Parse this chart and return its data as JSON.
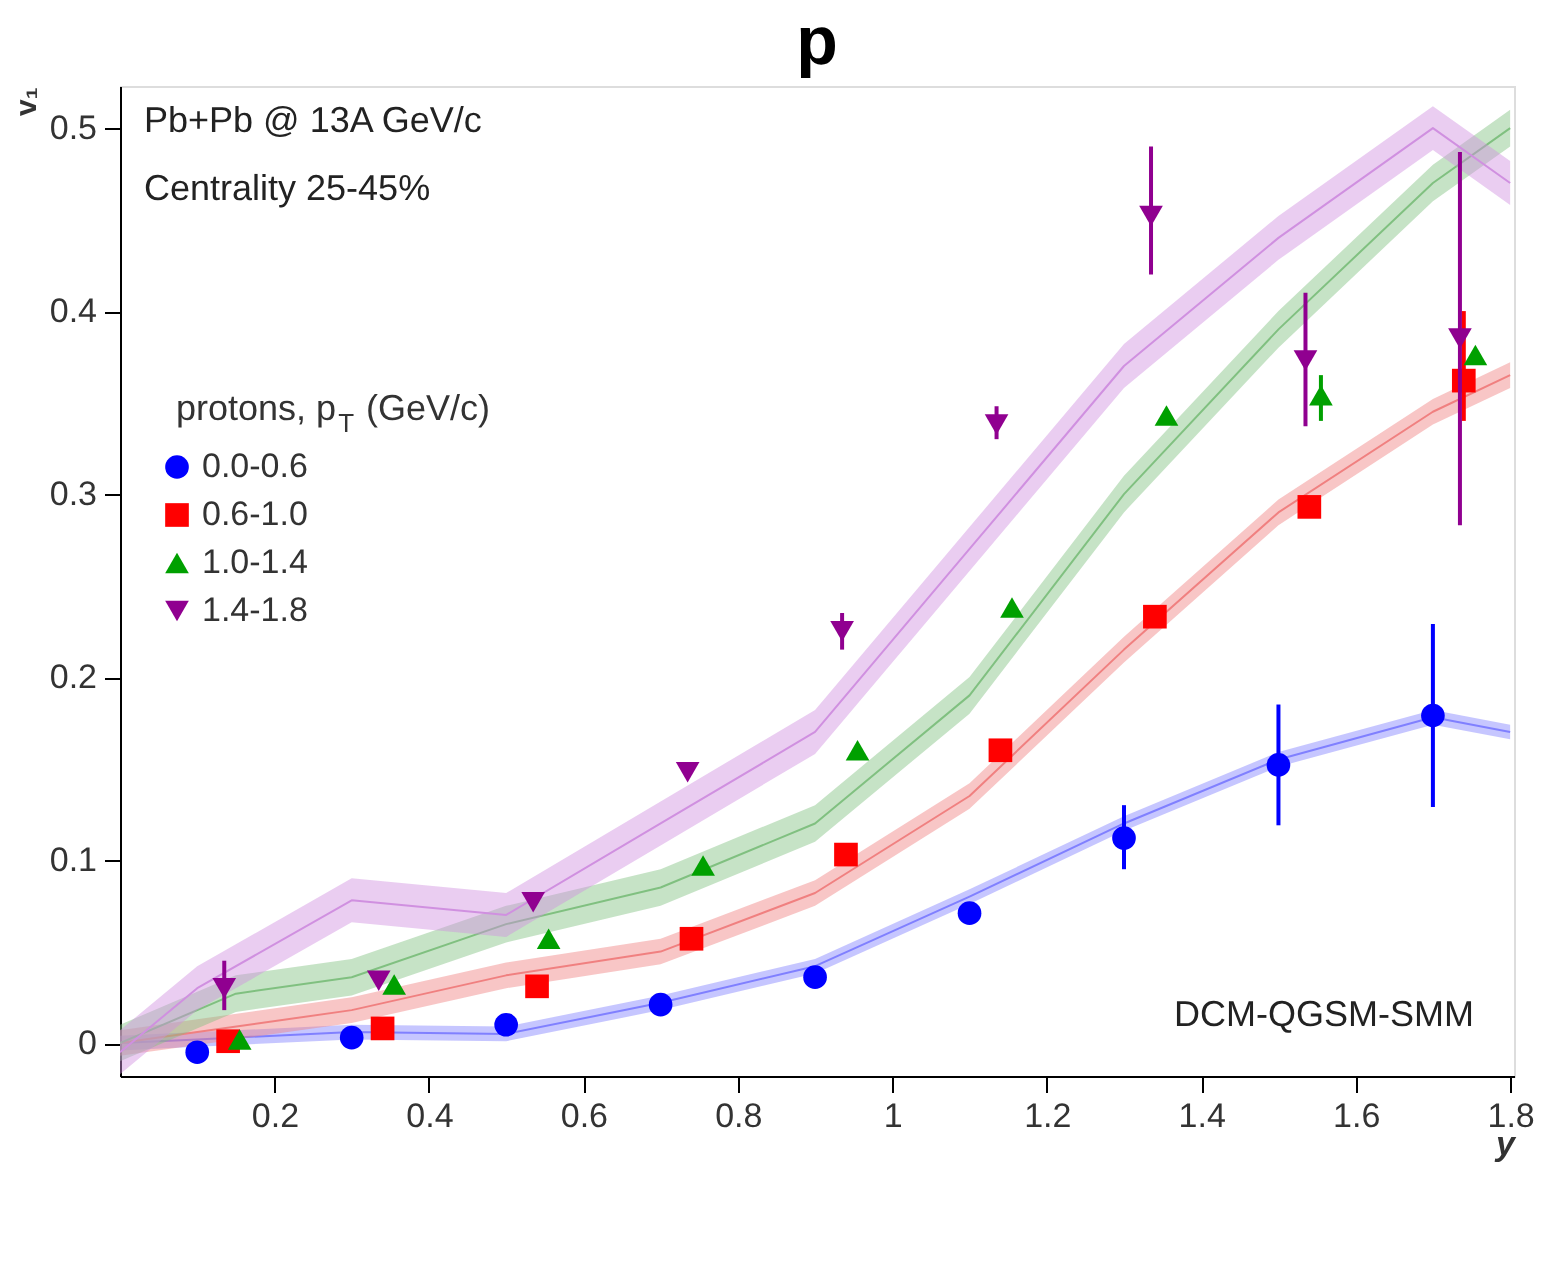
{
  "chart_data": {
    "type": "scatter",
    "title": "p",
    "xlabel": "y",
    "ylabel": "v₁",
    "legend_title": "protons, p$_{T}$ (GeV/c)",
    "annotations": [
      "Pb+Pb @ 13A GeV/c",
      "Centrality 25-45%",
      "DCM-QGSM-SMM"
    ],
    "xlim": [
      0,
      1.805
    ],
    "ylim": [
      -0.018,
      0.523
    ],
    "xticks": [
      0.2,
      0.4,
      0.6,
      0.8,
      1,
      1.2,
      1.4,
      1.6,
      1.8
    ],
    "yticks": [
      0,
      0.1,
      0.2,
      0.3,
      0.4,
      0.5
    ],
    "grid": false,
    "legend": "top left",
    "series": [
      {
        "type": "line",
        "color": "#8080ff",
        "x": [
          0,
          0.1,
          0.3,
          0.5,
          0.7,
          0.9,
          1.1,
          1.3,
          1.5,
          1.7,
          1.8
        ],
        "values": [
          0,
          0.002,
          0.006,
          0.005,
          0.022,
          0.042,
          0.08,
          0.12,
          0.155,
          0.178,
          0.17
        ],
        "lower": [
          -0.004,
          -0.002,
          0.002,
          0.001,
          0.018,
          0.038,
          0.076,
          0.116,
          0.151,
          0.174,
          0.166
        ],
        "upper": [
          0.004,
          0.006,
          0.01,
          0.009,
          0.026,
          0.046,
          0.084,
          0.124,
          0.159,
          0.182,
          0.174
        ]
      },
      {
        "type": "line",
        "color": "#f08080",
        "x": [
          0,
          0.1,
          0.3,
          0.5,
          0.7,
          0.9,
          1.1,
          1.3,
          1.5,
          1.7,
          1.8
        ],
        "values": [
          0,
          0.006,
          0.018,
          0.037,
          0.05,
          0.082,
          0.135,
          0.215,
          0.29,
          0.345,
          0.365
        ],
        "lower": [
          -0.007,
          -0.001,
          0.011,
          0.03,
          0.043,
          0.075,
          0.128,
          0.208,
          0.283,
          0.338,
          0.358
        ],
        "upper": [
          0.007,
          0.013,
          0.025,
          0.044,
          0.057,
          0.089,
          0.142,
          0.222,
          0.297,
          0.352,
          0.372
        ]
      },
      {
        "type": "line",
        "color": "#80c080",
        "x": [
          0,
          0.15,
          0.3,
          0.5,
          0.7,
          0.9,
          1.1,
          1.3,
          1.5,
          1.7,
          1.8
        ],
        "values": [
          0,
          0.027,
          0.036,
          0.065,
          0.085,
          0.12,
          0.19,
          0.3,
          0.39,
          0.47,
          0.5
        ],
        "lower": [
          -0.01,
          0.017,
          0.026,
          0.055,
          0.075,
          0.11,
          0.18,
          0.29,
          0.38,
          0.46,
          0.49
        ],
        "upper": [
          0.01,
          0.037,
          0.046,
          0.075,
          0.095,
          0.13,
          0.2,
          0.31,
          0.4,
          0.48,
          0.51
        ]
      },
      {
        "type": "line",
        "color": "#d090e0",
        "x": [
          0,
          0.1,
          0.3,
          0.5,
          0.7,
          0.9,
          1.1,
          1.3,
          1.5,
          1.7,
          1.8
        ],
        "values": [
          -0.005,
          0.03,
          0.078,
          0.07,
          0.12,
          0.17,
          0.27,
          0.37,
          0.44,
          0.5,
          0.47
        ],
        "lower": [
          -0.017,
          0.018,
          0.066,
          0.058,
          0.108,
          0.158,
          0.258,
          0.358,
          0.428,
          0.488,
          0.458
        ],
        "upper": [
          0.007,
          0.042,
          0.09,
          0.082,
          0.132,
          0.182,
          0.282,
          0.382,
          0.452,
          0.512,
          0.482
        ]
      },
      {
        "name": "0.0-0.6",
        "color": "#0000ff",
        "marker": "circle",
        "x": [
          0.1,
          0.3,
          0.5,
          0.7,
          0.9,
          1.1,
          1.3,
          1.5,
          1.7
        ],
        "values": [
          -0.005,
          0.003,
          0.01,
          0.021,
          0.036,
          0.071,
          0.112,
          0.152,
          0.179
        ],
        "errors": [
          null,
          null,
          null,
          null,
          null,
          null,
          [
            0.095,
            0.13
          ],
          [
            0.119,
            0.185
          ],
          [
            0.129,
            0.229
          ]
        ]
      },
      {
        "name": "0.6-1.0",
        "color": "#ff0000",
        "marker": "square",
        "x": [
          0.14,
          0.34,
          0.54,
          0.74,
          0.94,
          1.14,
          1.34,
          1.54,
          1.74
        ],
        "values": [
          0.001,
          0.008,
          0.031,
          0.057,
          0.103,
          0.16,
          0.233,
          0.293,
          0.362
        ],
        "errors": [
          null,
          null,
          null,
          null,
          null,
          null,
          null,
          null,
          [
            0.34,
            0.4
          ]
        ]
      },
      {
        "name": "1.0-1.4",
        "color": "#00a000",
        "marker": "triangle",
        "x": [
          0.155,
          0.355,
          0.555,
          0.755,
          0.955,
          1.155,
          1.355,
          1.555,
          1.755
        ],
        "values": [
          0.002,
          0.032,
          0.057,
          0.097,
          0.16,
          0.238,
          0.343,
          0.354,
          0.376
        ],
        "errors": [
          null,
          null,
          null,
          null,
          null,
          null,
          null,
          [
            0.34,
            0.365
          ],
          null
        ]
      },
      {
        "name": "1.4-1.8",
        "color": "#900090",
        "marker": "triangle-down",
        "x": [
          0.135,
          0.335,
          0.535,
          0.735,
          0.935,
          1.135,
          1.335,
          1.535,
          1.735
        ],
        "values": [
          0.03,
          0.034,
          0.077,
          0.148,
          0.225,
          0.338,
          0.452,
          0.373,
          0.385
        ],
        "errors": [
          [
            0.018,
            0.045
          ],
          null,
          null,
          null,
          [
            0.215,
            0.235
          ],
          [
            0.33,
            0.348
          ],
          [
            0.42,
            0.49
          ],
          [
            0.337,
            0.41
          ],
          [
            0.283,
            0.487
          ]
        ]
      }
    ]
  }
}
